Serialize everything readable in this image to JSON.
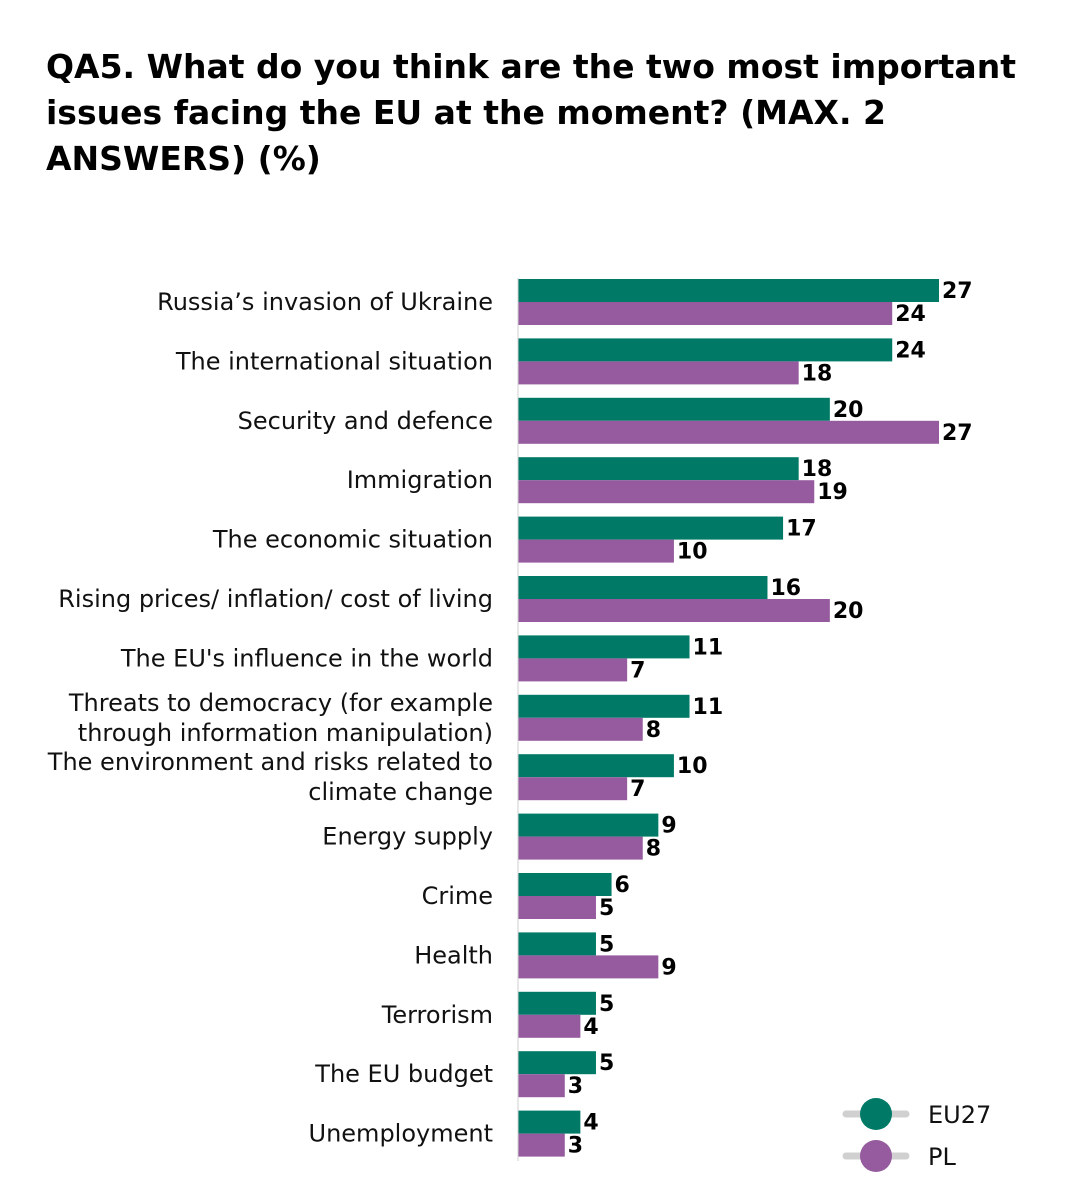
{
  "chart_data": {
    "type": "bar",
    "orientation": "horizontal",
    "title": "QA5. What do you think are the two most important issues facing the EU at the moment? (MAX. 2 ANSWERS) (%)",
    "categories": [
      [
        "Russia’s invasion of Ukraine"
      ],
      [
        "The international situation"
      ],
      [
        "Security and defence"
      ],
      [
        "Immigration"
      ],
      [
        "The economic situation"
      ],
      [
        "Rising prices/ inflation/ cost of living"
      ],
      [
        "The EU's influence in the world"
      ],
      [
        "Threats to democracy (for example",
        "through information manipulation)"
      ],
      [
        "The environment and risks related to",
        "climate change"
      ],
      [
        "Energy supply"
      ],
      [
        "Crime"
      ],
      [
        "Health"
      ],
      [
        "Terrorism"
      ],
      [
        "The EU budget"
      ],
      [
        "Unemployment"
      ]
    ],
    "series": [
      {
        "name": "EU27",
        "color": "#007A66",
        "values": [
          27,
          24,
          20,
          18,
          17,
          16,
          11,
          11,
          10,
          9,
          6,
          5,
          5,
          5,
          4
        ]
      },
      {
        "name": "PL",
        "color": "#955B9E",
        "values": [
          24,
          18,
          27,
          19,
          10,
          20,
          7,
          8,
          7,
          8,
          5,
          9,
          4,
          3,
          3
        ]
      }
    ],
    "xlim": [
      0,
      27
    ],
    "legend_position": "bottom-right",
    "grid": false
  }
}
